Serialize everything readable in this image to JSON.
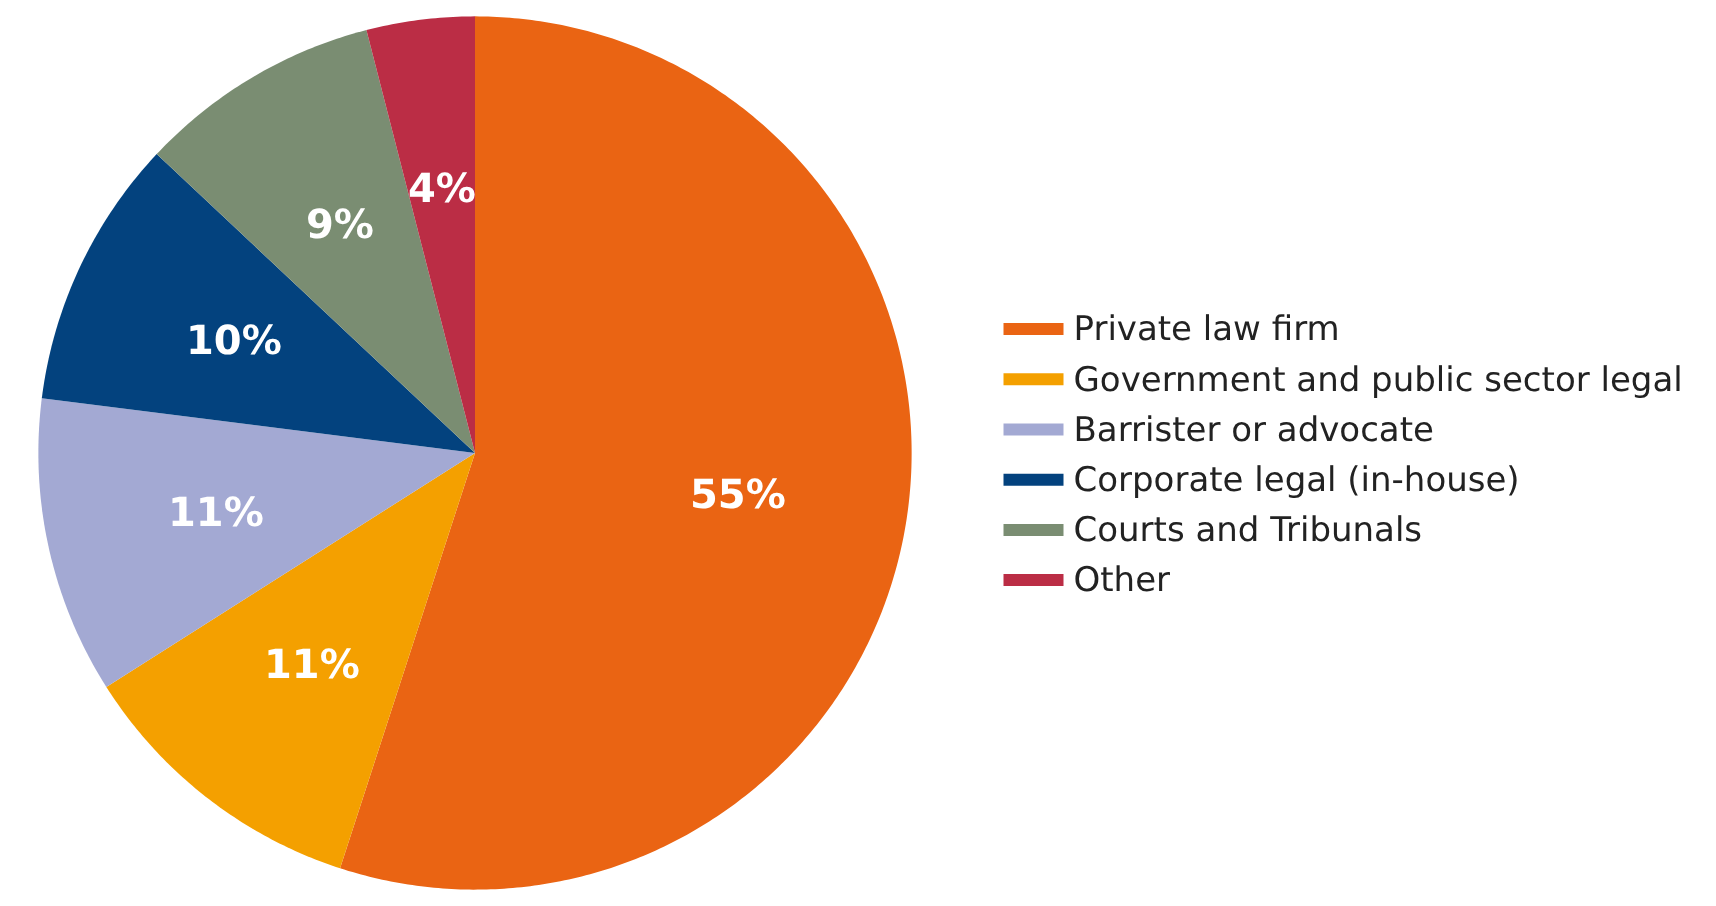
{
  "chart_data": {
    "type": "pie",
    "categories": [
      "Private law firm",
      "Government and public sector legal",
      "Barrister or advocate",
      "Corporate legal (in-house)",
      "Courts and Tribunals",
      "Other"
    ],
    "values": [
      55,
      11,
      11,
      10,
      9,
      4
    ],
    "value_labels": [
      "55%",
      "11%",
      "11%",
      "10%",
      "9%",
      "4%"
    ],
    "colors": [
      "#ea6413",
      "#f4a000",
      "#a3a9d3",
      "#03427e",
      "#7a8d72",
      "#bb2d45"
    ],
    "legend": "right"
  }
}
